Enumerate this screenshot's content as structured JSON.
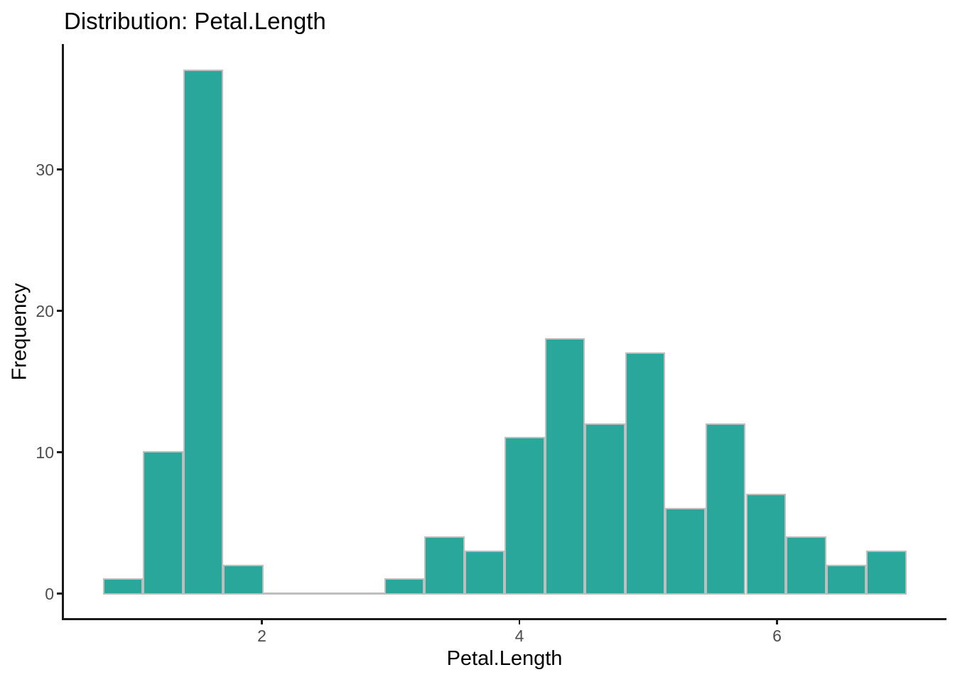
{
  "title": "Distribution: Petal.Length",
  "x_axis": {
    "label": "Petal.Length",
    "tick_labels": [
      "2",
      "4",
      "6"
    ]
  },
  "y_axis": {
    "label": "Frequency",
    "tick_labels": [
      "0",
      "10",
      "20",
      "30"
    ]
  },
  "colors": {
    "bar_fill": "#2aa79b",
    "bar_border": "#bebebe",
    "axis_line": "#1a1a1a",
    "tick_label_text": "#4d4d4d",
    "title_text": "#000000",
    "background": "#ffffff"
  },
  "chart_data": {
    "type": "bar",
    "subtype": "histogram",
    "title": "Distribution: Petal.Length",
    "xlabel": "Petal.Length",
    "ylabel": "Frequency",
    "variable": "Petal.Length",
    "n_bins": 20,
    "bin_start": 0.765,
    "binwidth": 0.312,
    "bin_edges": [
      0.765,
      1.077,
      1.389,
      1.701,
      2.013,
      2.325,
      2.637,
      2.949,
      3.261,
      3.573,
      3.885,
      4.197,
      4.509,
      4.821,
      5.133,
      5.445,
      5.757,
      6.069,
      6.381,
      6.693,
      7.005
    ],
    "counts": [
      1,
      10,
      37,
      2,
      0,
      0,
      0,
      1,
      4,
      3,
      11,
      18,
      12,
      17,
      6,
      12,
      7,
      4,
      2,
      3
    ],
    "total_count": 150,
    "x_ticks": [
      2,
      4,
      6
    ],
    "y_ticks": [
      0,
      10,
      20,
      30
    ],
    "xlim": [
      0.47,
      7.31
    ],
    "ylim": [
      0,
      38.8
    ],
    "grid": false,
    "legend": false
  }
}
